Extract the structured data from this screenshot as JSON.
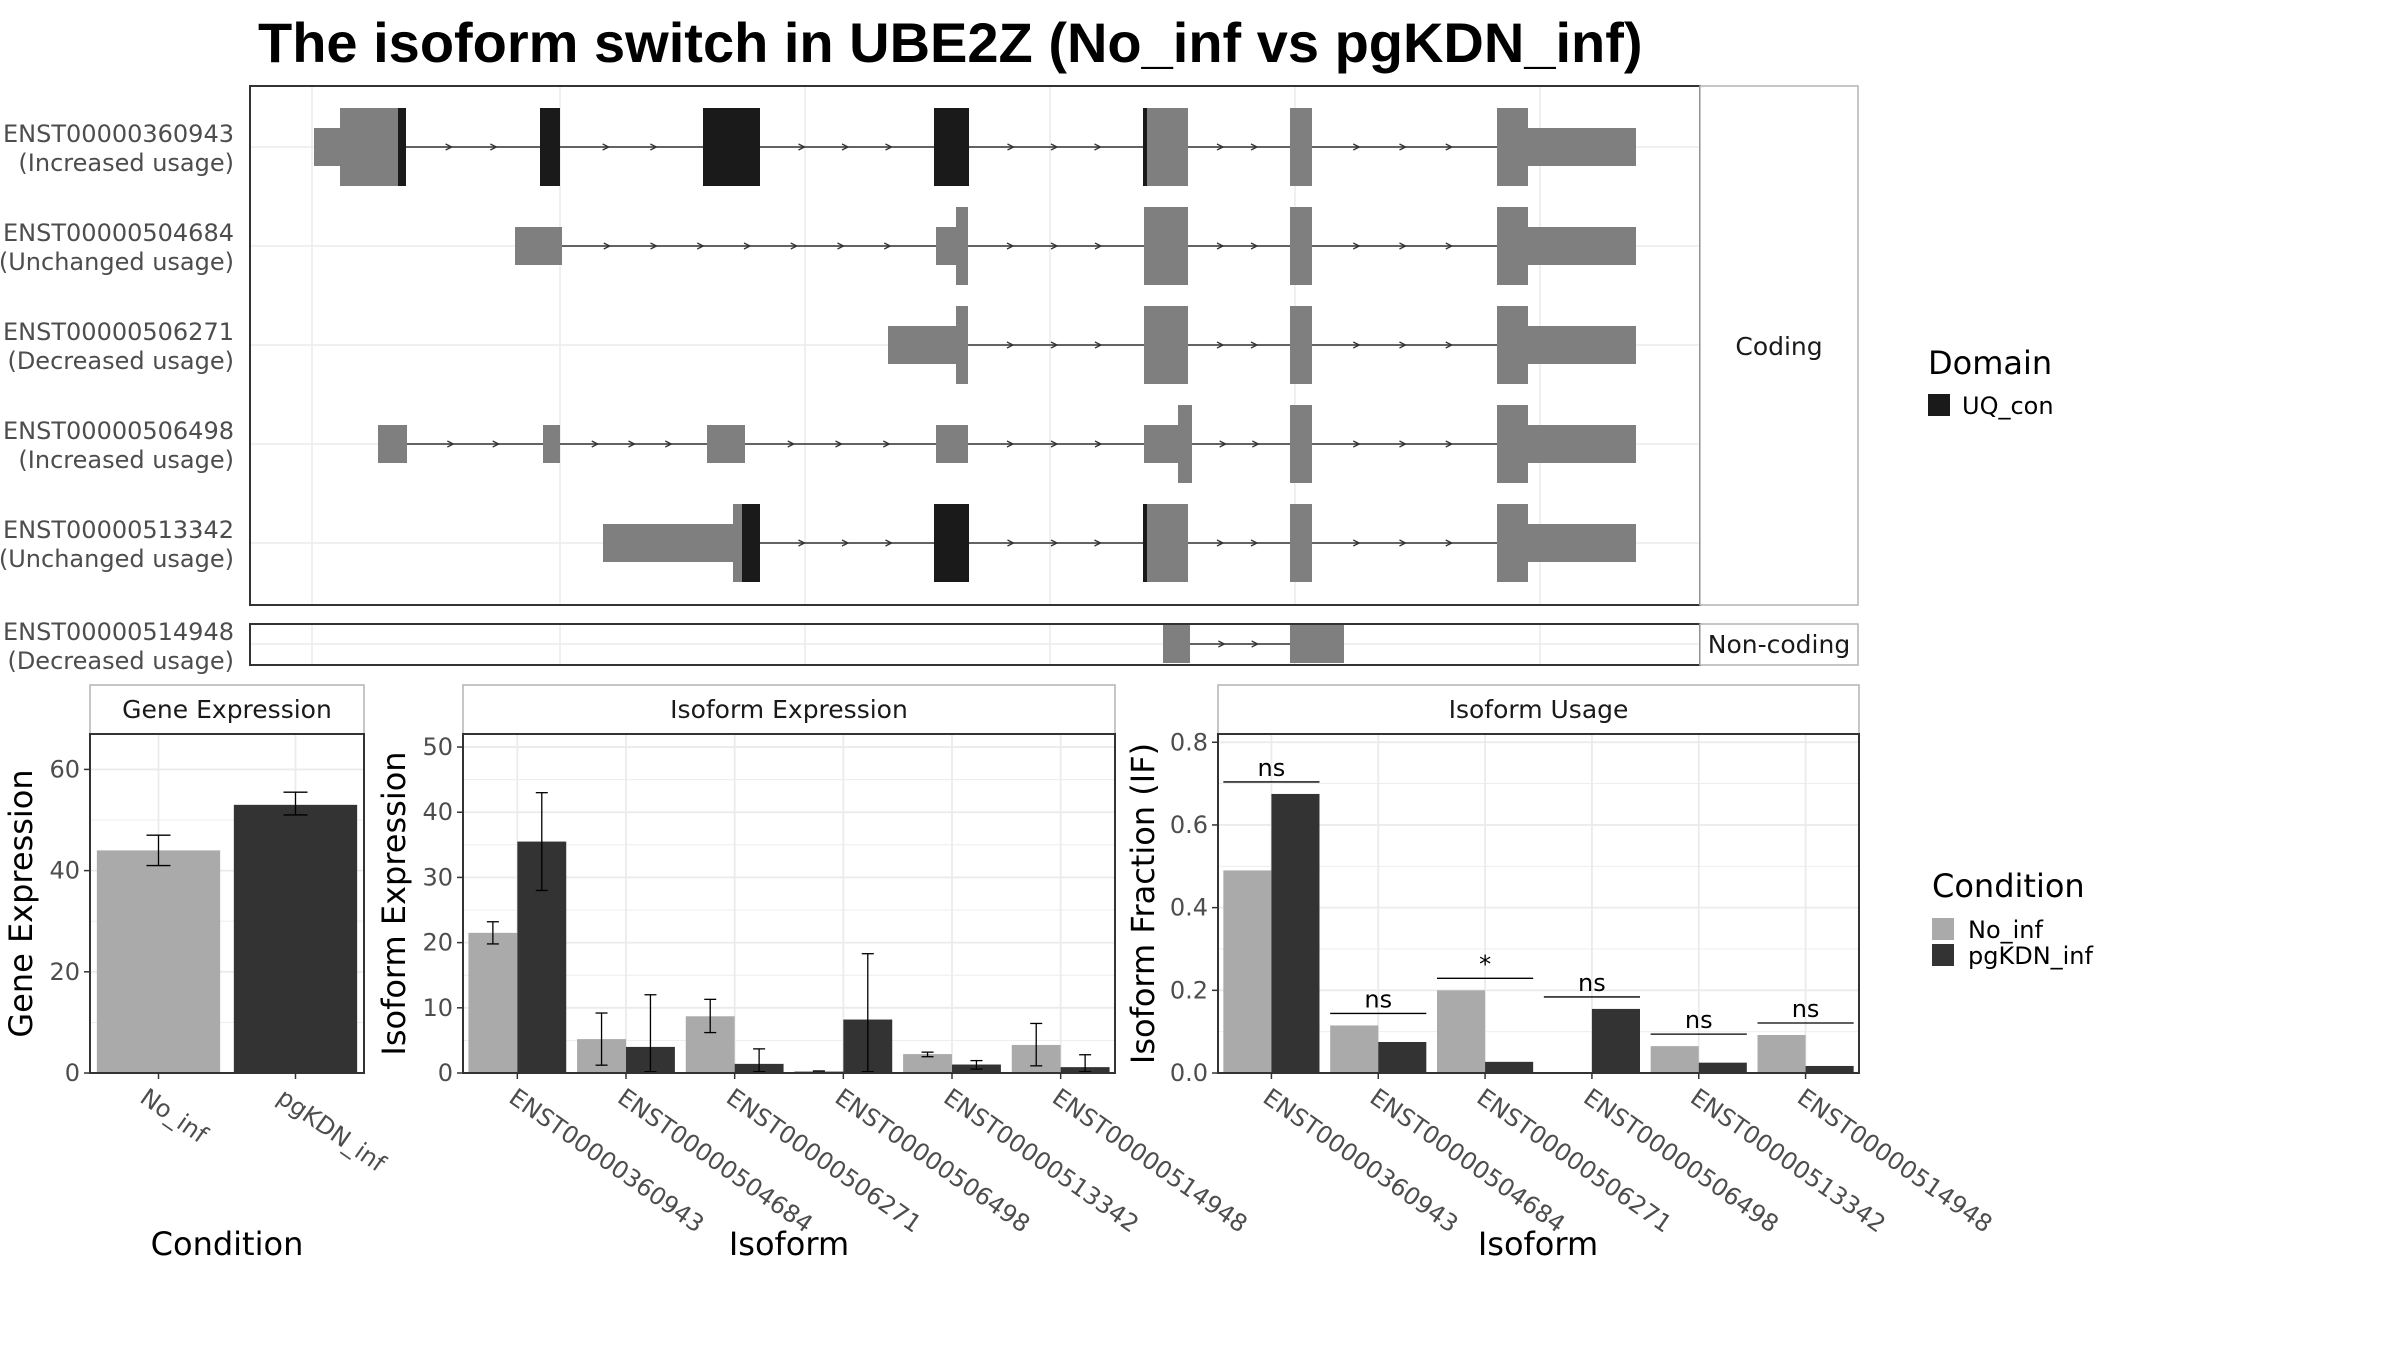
{
  "title": "The isoform switch in UBE2Z (No_inf vs pgKDN_inf)",
  "colors": {
    "domain": "#1a1a1a",
    "exon": "#7f7f7f",
    "no_inf": "#aaaaaa",
    "pgkdn_inf": "#333333",
    "grid": "#ebebeb",
    "panel_border": "#333333",
    "strip_border": "#b3b3b3"
  },
  "structure": {
    "coding_label": "Coding",
    "noncoding_label": "Non-coding",
    "transcripts": [
      {
        "id": "ENST00000360943",
        "status": "(Increased usage)",
        "coding": true
      },
      {
        "id": "ENST00000504684",
        "status": "(Unchanged usage)",
        "coding": true
      },
      {
        "id": "ENST00000506271",
        "status": "(Decreased usage)",
        "coding": true
      },
      {
        "id": "ENST00000506498",
        "status": "(Increased usage)",
        "coding": true
      },
      {
        "id": "ENST00000513342",
        "status": "(Unchanged usage)",
        "coding": true
      },
      {
        "id": "ENST00000514948",
        "status": "(Decreased usage)",
        "coding": false
      }
    ]
  },
  "legend_domain": {
    "title": "Domain",
    "items": [
      "UQ_con"
    ]
  },
  "legend_condition": {
    "title": "Condition",
    "items": [
      "No_inf",
      "pgKDN_inf"
    ]
  },
  "chart_data": [
    {
      "type": "bar",
      "panel": "Gene Expression",
      "xlabel": "Condition",
      "ylabel": "Gene Expression",
      "categories": [
        "No_inf",
        "pgKDN_inf"
      ],
      "values": [
        44,
        53
      ],
      "errors": [
        [
          41,
          47
        ],
        [
          51,
          55.5
        ]
      ],
      "ylim": [
        0,
        67
      ],
      "yticks": [
        0,
        20,
        40,
        60
      ]
    },
    {
      "type": "bar",
      "panel": "Isoform Expression",
      "xlabel": "Isoform",
      "ylabel": "Isoform Expression",
      "categories": [
        "ENST00000360943",
        "ENST00000504684",
        "ENST00000506271",
        "ENST00000506498",
        "ENST00000513342",
        "ENST00000514948"
      ],
      "series": [
        {
          "name": "No_inf",
          "values": [
            21.5,
            5.2,
            8.7,
            0.3,
            2.9,
            4.3
          ],
          "errors": [
            [
              19.8,
              23.2
            ],
            [
              1.2,
              9.2
            ],
            [
              6.2,
              11.3
            ],
            [
              0.3,
              0.3
            ],
            [
              2.5,
              3.2
            ],
            [
              1.1,
              7.6
            ]
          ]
        },
        {
          "name": "pgKDN_inf",
          "values": [
            35.5,
            4.0,
            1.4,
            8.2,
            1.3,
            0.9
          ],
          "errors": [
            [
              28,
              43
            ],
            [
              0.2,
              12
            ],
            [
              0.2,
              3.7
            ],
            [
              0.2,
              18.3
            ],
            [
              0.6,
              1.9
            ],
            [
              0.2,
              2.8
            ]
          ]
        }
      ],
      "ylim": [
        0,
        52
      ],
      "yticks": [
        0,
        10,
        20,
        30,
        40,
        50
      ]
    },
    {
      "type": "bar",
      "panel": "Isoform Usage",
      "xlabel": "Isoform",
      "ylabel": "Isoform Fraction (IF)",
      "categories": [
        "ENST00000360943",
        "ENST00000504684",
        "ENST00000506271",
        "ENST00000506498",
        "ENST00000513342",
        "ENST00000514948"
      ],
      "series": [
        {
          "name": "No_inf",
          "values": [
            0.49,
            0.115,
            0.2,
            0.0,
            0.065,
            0.092
          ]
        },
        {
          "name": "pgKDN_inf",
          "values": [
            0.675,
            0.075,
            0.027,
            0.155,
            0.025,
            0.017
          ]
        }
      ],
      "significance": [
        "ns",
        "ns",
        "*",
        "ns",
        "ns",
        "ns"
      ],
      "ylim": [
        0,
        0.82
      ],
      "yticks": [
        "0.0",
        "0.2",
        "0.4",
        "0.6",
        "0.8"
      ]
    }
  ]
}
